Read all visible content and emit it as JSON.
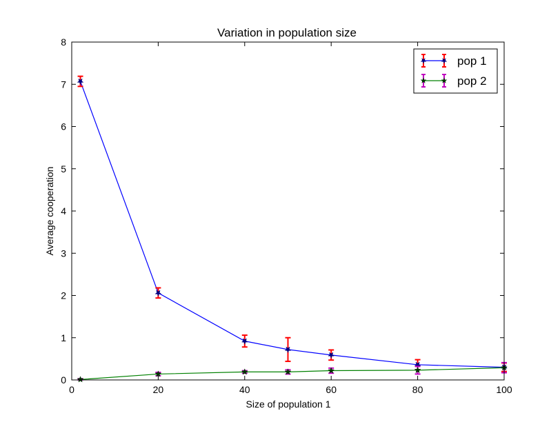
{
  "chart_data": {
    "type": "line",
    "title": "Variation in population size",
    "xlabel": "Size of population 1",
    "ylabel": "Average cooperation",
    "xlim": [
      0,
      100
    ],
    "ylim": [
      0,
      8
    ],
    "xticks": [
      0,
      20,
      40,
      60,
      80,
      100
    ],
    "yticks": [
      0,
      1,
      2,
      3,
      4,
      5,
      6,
      7,
      8
    ],
    "grid": false,
    "legend_position": "top-right",
    "x": [
      2,
      20,
      40,
      50,
      60,
      80,
      100
    ],
    "series": [
      {
        "name": "pop 1",
        "values": [
          7.07,
          2.06,
          0.92,
          0.72,
          0.59,
          0.36,
          0.3
        ],
        "errors": [
          0.12,
          0.12,
          0.14,
          0.28,
          0.12,
          0.12,
          0.1
        ],
        "line_color": "#0000ff",
        "errorbar_color": "#ff0000",
        "marker_color": "#000080",
        "marker": "star-down"
      },
      {
        "name": "pop 2",
        "values": [
          0.01,
          0.14,
          0.19,
          0.19,
          0.22,
          0.23,
          0.29
        ],
        "errors": [
          0.02,
          0.04,
          0.03,
          0.05,
          0.06,
          0.09,
          0.12
        ],
        "line_color": "#008000",
        "errorbar_color": "#bf00bf",
        "marker_color": "#003300",
        "marker": "star-up"
      }
    ]
  }
}
